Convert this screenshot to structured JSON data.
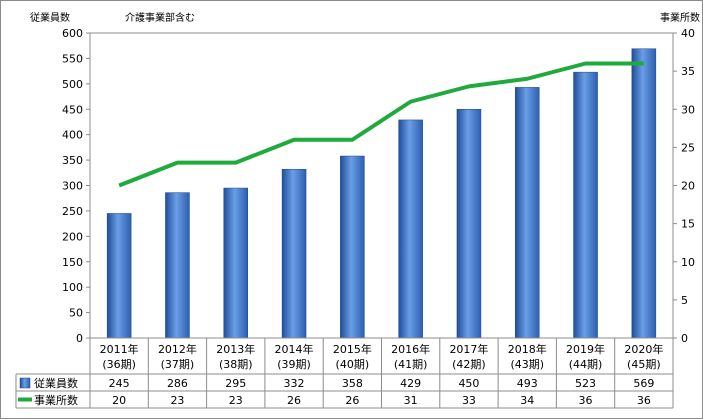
{
  "chart_data": {
    "type": "bar+line",
    "categories": [
      "2011年\n(36期)",
      "2012年\n(37期)",
      "2013年\n(38期)",
      "2014年\n(39期)",
      "2015年\n(40期)",
      "2016年\n(41期)",
      "2017年\n(42期)",
      "2018年\n(43期)",
      "2019年\n(44期)",
      "2020年\n(45期)"
    ],
    "series": [
      {
        "name": "従業員数",
        "type": "bar",
        "axis": "left",
        "values": [
          245,
          286,
          295,
          332,
          358,
          429,
          450,
          493,
          523,
          569
        ],
        "color": "#3a6fc4"
      },
      {
        "name": "事業所数",
        "type": "line",
        "axis": "right",
        "values": [
          20,
          23,
          23,
          26,
          26,
          31,
          33,
          34,
          36,
          36
        ],
        "color": "#1faa3c"
      }
    ],
    "ylabel_left": "従業員数",
    "ylabel_right": "事業所数",
    "annotation": "介護事業部含む",
    "ylim_left": [
      0,
      600
    ],
    "ylim_right": [
      0,
      40
    ],
    "yticks_left": [
      0,
      50,
      100,
      150,
      200,
      250,
      300,
      350,
      400,
      450,
      500,
      550,
      600
    ],
    "yticks_right": [
      0,
      5,
      10,
      15,
      20,
      25,
      30,
      35,
      40
    ],
    "grid": false,
    "data_table": true
  }
}
